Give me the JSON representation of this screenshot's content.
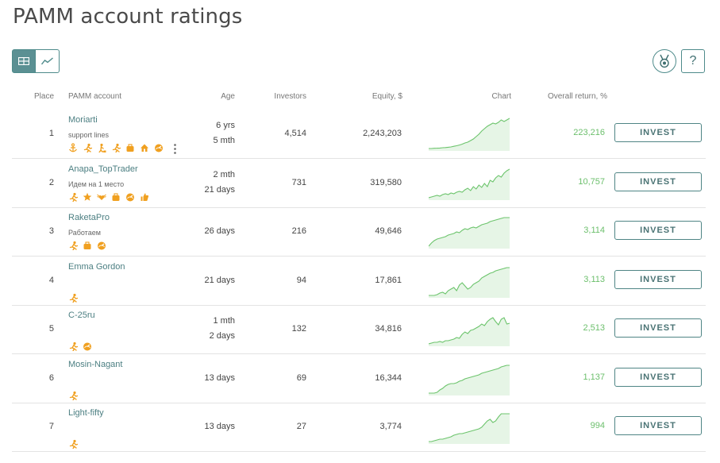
{
  "page": {
    "title": "PAMM account ratings"
  },
  "toolbar": {
    "view_table_icon": "table-icon",
    "view_chart_icon": "line-chart-icon",
    "medal_icon": "medal-icon",
    "help_label": "?"
  },
  "table": {
    "headers": {
      "place": "Place",
      "account": "PAMM account",
      "age": "Age",
      "investors": "Investors",
      "equity": "Equity, $",
      "chart": "Chart",
      "return": "Overall return, %"
    },
    "invest_label": "INVEST",
    "rows": [
      {
        "place": "1",
        "name": "Moriarti",
        "sub": "support lines",
        "age1": "6 yrs",
        "age2": "5 mth",
        "investors": "4,514",
        "equity": "2,243,203",
        "return": "223,216",
        "badges": [
          "anchor-icon",
          "runner-icon",
          "runner-step-icon",
          "runner-icon",
          "briefcase-icon",
          "house-icon",
          "speedometer-icon"
        ],
        "has_more": true,
        "spark": [
          2,
          2,
          2.3,
          2.4,
          2.6,
          3,
          3.2,
          3.6,
          4,
          4.8,
          5.5,
          6.4,
          7.5,
          9,
          10,
          12,
          14,
          17,
          20,
          24,
          27,
          30,
          32,
          34,
          33,
          35,
          38,
          36,
          38,
          40
        ]
      },
      {
        "place": "2",
        "name": "Anapa_TopTrader",
        "sub": "Идем на 1 место",
        "age1": "2 mth",
        "age2": "21 days",
        "investors": "731",
        "equity": "319,580",
        "return": "10,757",
        "badges": [
          "runner-icon",
          "star-icon",
          "heart-wings-icon",
          "briefcase-icon",
          "speedometer-icon",
          "thumbs-up-icon"
        ],
        "has_more": false,
        "spark": [
          2,
          3,
          4,
          5,
          4,
          6,
          7,
          6,
          8,
          7,
          9,
          10,
          9,
          12,
          14,
          11,
          16,
          13,
          18,
          15,
          20,
          16,
          24,
          22,
          27,
          30,
          28,
          33,
          36,
          38
        ]
      },
      {
        "place": "3",
        "name": "RaketaPro",
        "sub": "Работаем",
        "age1": "26 days",
        "age2": "",
        "investors": "216",
        "equity": "49,646",
        "return": "3,114",
        "badges": [
          "runner-icon",
          "briefcase-icon",
          "speedometer-icon"
        ],
        "has_more": false,
        "spark": [
          2,
          6,
          9,
          11,
          12,
          13,
          14,
          16,
          17,
          18,
          20,
          19,
          22,
          24,
          23,
          25,
          26,
          25,
          27,
          29,
          30,
          31,
          33,
          34,
          35,
          36,
          37,
          38,
          38,
          38
        ]
      },
      {
        "place": "4",
        "name": "Emma Gordon",
        "sub": "",
        "age1": "21 days",
        "age2": "",
        "investors": "94",
        "equity": "17,861",
        "return": "3,113",
        "badges": [
          "runner-icon"
        ],
        "has_more": false,
        "spark": [
          2,
          2,
          2,
          3,
          5,
          6,
          4,
          8,
          10,
          12,
          8,
          15,
          18,
          14,
          10,
          12,
          16,
          18,
          20,
          24,
          26,
          28,
          30,
          31,
          33,
          34,
          35,
          36,
          37,
          37
        ]
      },
      {
        "place": "5",
        "name": "C-25ru",
        "sub": "",
        "age1": "1 mth",
        "age2": "2 days",
        "investors": "132",
        "equity": "34,816",
        "return": "2,513",
        "badges": [
          "runner-icon",
          "speedometer-icon"
        ],
        "has_more": false,
        "spark": [
          2,
          3,
          4,
          4,
          5,
          4,
          6,
          6,
          7,
          8,
          10,
          9,
          14,
          17,
          15,
          19,
          20,
          22,
          24,
          27,
          25,
          30,
          33,
          35,
          30,
          26,
          33,
          35,
          27,
          28
        ]
      },
      {
        "place": "6",
        "name": "Mosin-Nagant",
        "sub": "",
        "age1": "13 days",
        "age2": "",
        "investors": "69",
        "equity": "16,344",
        "return": "1,137",
        "badges": [
          "runner-icon"
        ],
        "has_more": false,
        "spark": [
          2,
          2,
          2,
          3,
          6,
          8,
          11,
          13,
          14,
          14,
          15,
          17,
          18,
          20,
          21,
          22,
          23,
          24,
          25,
          27,
          28,
          29,
          30,
          31,
          32,
          33,
          35,
          36,
          37,
          37
        ]
      },
      {
        "place": "7",
        "name": "Light-fifty",
        "sub": "",
        "age1": "13 days",
        "age2": "",
        "investors": "27",
        "equity": "3,774",
        "return": "994",
        "badges": [
          "runner-icon"
        ],
        "has_more": false,
        "spark": [
          2,
          2,
          3,
          4,
          5,
          5,
          6,
          7,
          8,
          10,
          11,
          12,
          12,
          13,
          14,
          15,
          16,
          17,
          18,
          20,
          24,
          28,
          30,
          26,
          28,
          33,
          37,
          37,
          37,
          37
        ]
      }
    ]
  },
  "colors": {
    "accent": "#5b9093",
    "positive": "#6cbf6c",
    "badge": "#f0a020",
    "spark_line": "#6cc46c",
    "spark_fill": "#e6f5e6"
  }
}
